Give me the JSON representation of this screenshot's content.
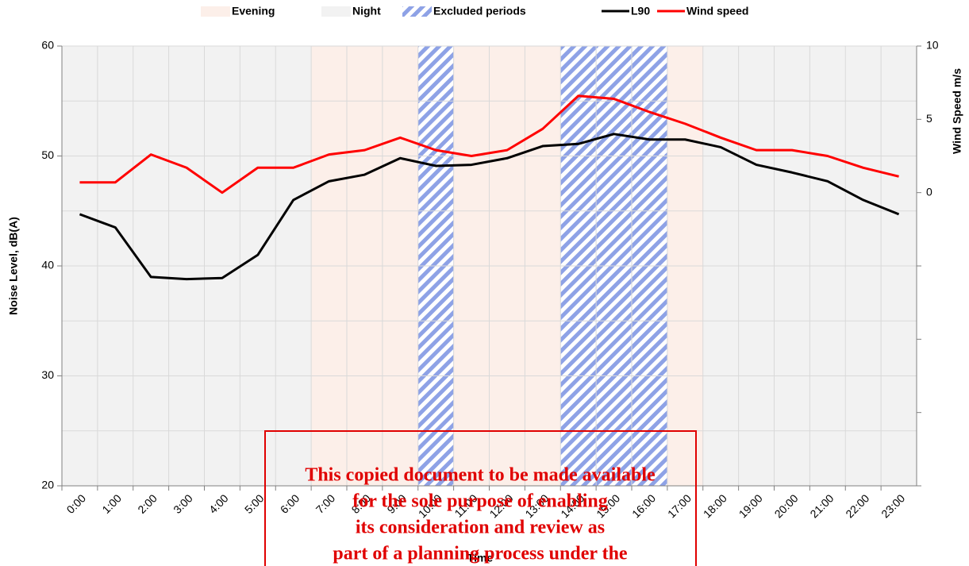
{
  "chart_data": {
    "type": "line",
    "x_label": "Time",
    "y_label": "Noise Level, dB(A)",
    "y2_label": "Wind Speed m/s",
    "categories": [
      "0:00",
      "1:00",
      "2:00",
      "3:00",
      "4:00",
      "5:00",
      "6:00",
      "7:00",
      "8:00",
      "9:00",
      "10:00",
      "11:00",
      "12:00",
      "13:00",
      "14:00",
      "15:00",
      "16:00",
      "17:00",
      "18:00",
      "19:00",
      "20:00",
      "21:00",
      "22:00",
      "23:00"
    ],
    "series": [
      {
        "name": "L90",
        "color": "#000000",
        "values": [
          44.7,
          43.5,
          39.0,
          38.8,
          38.9,
          41.0,
          46.0,
          47.7,
          48.3,
          49.8,
          49.1,
          49.2,
          49.8,
          50.9,
          51.1,
          52.0,
          51.5,
          51.5,
          50.8,
          49.2,
          48.5,
          47.7,
          46.0,
          44.7
        ]
      },
      {
        "name": "Wind speed",
        "color": "#ff0000",
        "axis": "y2",
        "values": [
          0.7,
          0.7,
          2.6,
          1.7,
          0,
          1.7,
          1.7,
          2.6,
          2.9,
          3.75,
          2.9,
          2.5,
          2.9,
          4.35,
          6.6,
          6.4,
          5.5,
          4.7,
          3.75,
          2.9,
          2.9,
          2.5,
          1.7,
          1.1
        ]
      }
    ],
    "shading": [
      {
        "name": "Evening",
        "color": "#fcefe9",
        "periods": [
          [
            "7:00",
            "17:00"
          ]
        ]
      },
      {
        "name": "Night",
        "color": "#f2f2f2",
        "periods": [
          [
            "0:00",
            "23:00"
          ]
        ]
      },
      {
        "name": "Excluded periods",
        "color": "#8ea2e6",
        "hatched": true,
        "periods": [
          [
            "10:00",
            "10:00"
          ],
          [
            "14:00",
            "16:00"
          ]
        ]
      }
    ],
    "ylim": [
      20,
      60
    ],
    "yticks": [
      20,
      30,
      40,
      50,
      60
    ],
    "yminor_ticks": [
      25,
      35,
      45,
      55
    ],
    "y2lim": [
      -20,
      10
    ],
    "y2ticks": [
      0,
      5,
      10
    ],
    "y2minor_ticks": [
      -20,
      -15,
      -10,
      -5
    ],
    "grid": true,
    "legend": "top",
    "watermark": [
      "This copied document to be made available",
      "for the sole purpose of enabling",
      "its consideration and review as",
      "part of a planning process under the"
    ]
  }
}
